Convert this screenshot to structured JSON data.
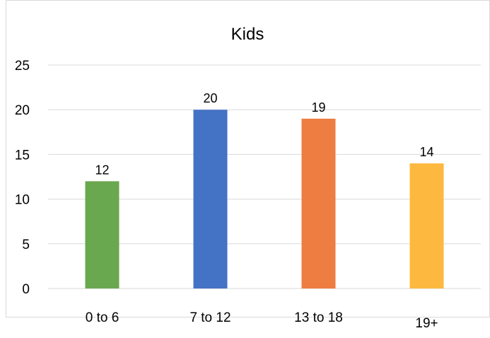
{
  "chart_data": {
    "type": "bar",
    "title": "Kids",
    "xlabel": "",
    "ylabel": "",
    "categories": [
      "0 to 6",
      "7 to 12",
      "13 to 18",
      "19+"
    ],
    "values": [
      12,
      20,
      19,
      14
    ],
    "data_labels": [
      "12",
      "20",
      "19",
      "14"
    ],
    "bar_colors": [
      "#6aa84f",
      "#4472c4",
      "#ed7d41",
      "#fdb93f"
    ],
    "ylim": [
      0,
      25
    ],
    "yticks": [
      0,
      5,
      10,
      15,
      20,
      25
    ],
    "ytick_labels": [
      "0",
      "5",
      "10",
      "15",
      "20",
      "25"
    ],
    "grid": true,
    "legend": "none"
  }
}
